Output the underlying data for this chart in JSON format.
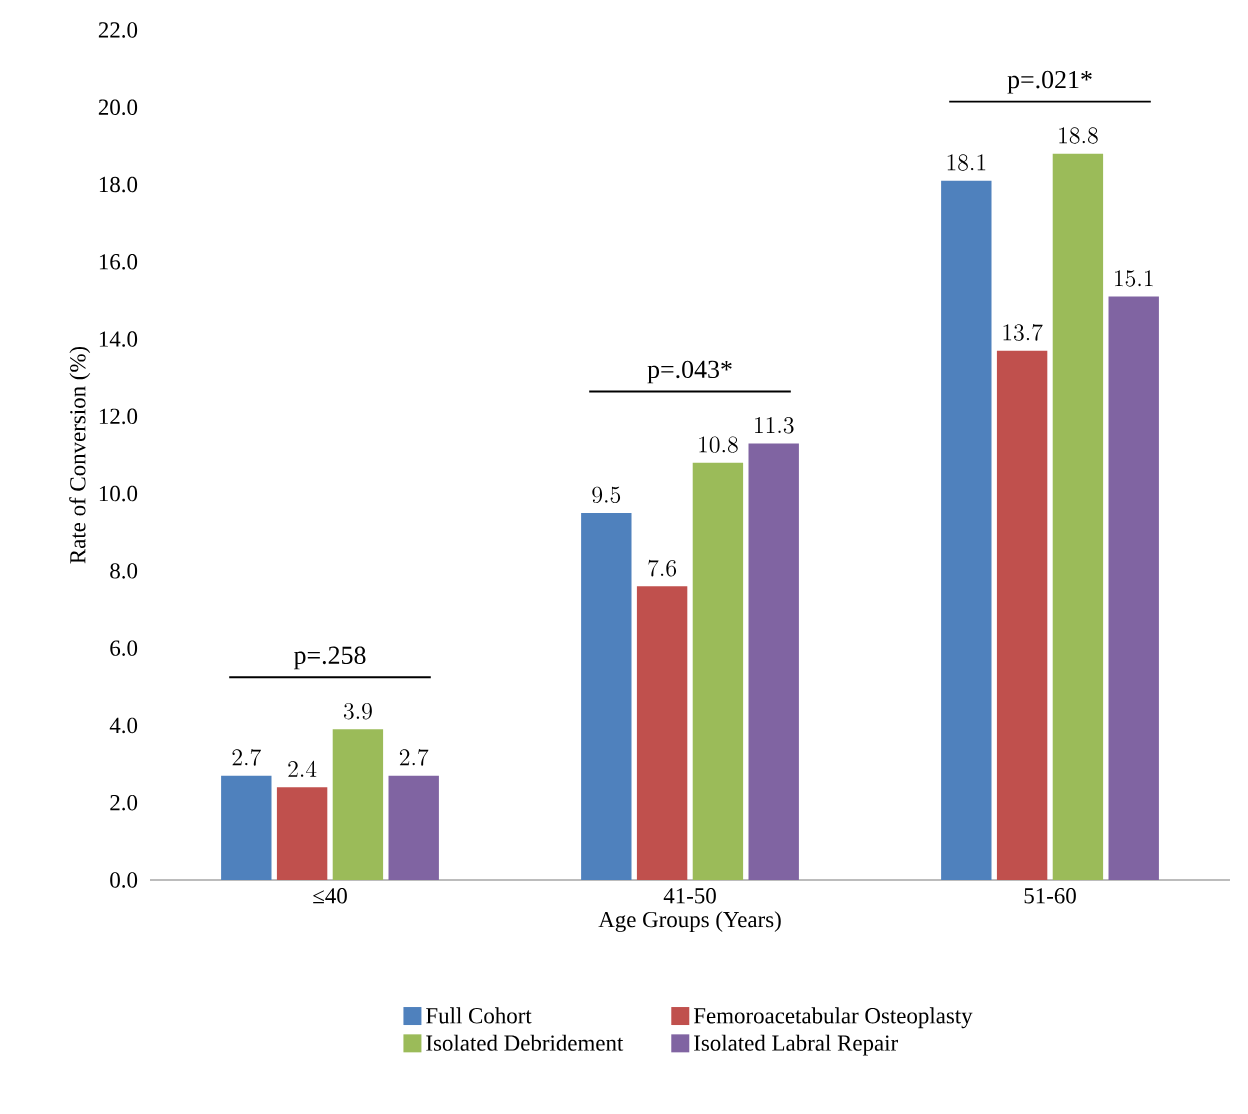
{
  "chart_data": {
    "type": "bar",
    "xlabel": "Age Groups (Years)",
    "ylabel": "Rate of Conversion (%)",
    "categories": [
      "≤40",
      "41-50",
      "51-60"
    ],
    "series": [
      {
        "name": "Full Cohort",
        "color": "#4f81bd",
        "values": [
          2.7,
          9.5,
          18.1
        ]
      },
      {
        "name": "Femoroacetabular  Osteoplasty",
        "color": "#c0504d",
        "values": [
          2.4,
          7.6,
          13.7
        ]
      },
      {
        "name": "Isolated Debridement",
        "color": "#9bbb59",
        "values": [
          3.9,
          10.8,
          18.8
        ]
      },
      {
        "name": "Isolated Labral Repair",
        "color": "#8064a2",
        "values": [
          2.7,
          11.3,
          15.1
        ]
      }
    ],
    "ylim": [
      0,
      22
    ],
    "yticks": [
      {
        "value": 0,
        "label": "0.0"
      },
      {
        "value": 2,
        "label": "2.0"
      },
      {
        "value": 4,
        "label": "4.0"
      },
      {
        "value": 6,
        "label": "6.0"
      },
      {
        "value": 8,
        "label": "8.0"
      },
      {
        "value": 10,
        "label": "10.0"
      },
      {
        "value": 12,
        "label": "12.0"
      },
      {
        "value": 14,
        "label": "14.0"
      },
      {
        "value": 16,
        "label": "16.0"
      },
      {
        "value": 18,
        "label": "18.0"
      },
      {
        "value": 20,
        "label": "20.0"
      },
      {
        "value": 22,
        "label": "22.0"
      }
    ],
    "data_labels": true,
    "grid": false,
    "legend": "bottom",
    "annotations": [
      "p=.258",
      "p=.043*",
      "p=.021*"
    ]
  }
}
